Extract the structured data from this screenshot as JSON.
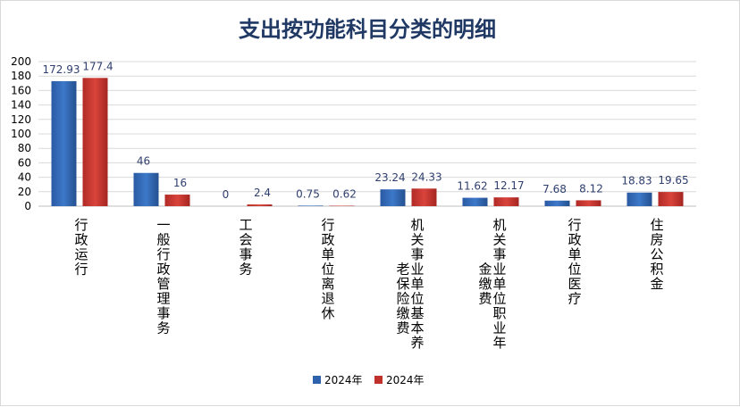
{
  "chart_data": {
    "type": "bar",
    "title": "支出按功能科目分类的明细",
    "xlabel": "",
    "ylabel": "",
    "ylim": [
      0,
      200
    ],
    "yticks": [
      0,
      20,
      40,
      60,
      80,
      100,
      120,
      140,
      160,
      180,
      200
    ],
    "grid": true,
    "legend_position": "bottom",
    "categories": [
      "行政运行",
      "一般行政管理事务",
      "工会事务",
      "行政单位离退休",
      "机关事业单位基本养老保险缴费",
      "机关事业单位职业年金缴费",
      "行政单位医疗",
      "住房公积金"
    ],
    "category_display": [
      [
        [
          "行",
          "政",
          "运",
          "行"
        ]
      ],
      [
        [
          "一",
          "般",
          "行",
          "政",
          "管",
          "理",
          "事",
          "务"
        ]
      ],
      [
        [
          "工",
          "会",
          "事",
          "务"
        ]
      ],
      [
        [
          "行",
          "政",
          "单",
          "位",
          "离",
          "退",
          "休"
        ]
      ],
      [
        [
          "老",
          "保",
          "险",
          "缴",
          "费"
        ],
        [
          "机",
          "关",
          "事",
          "业",
          "单",
          "位",
          "基",
          "本",
          "养"
        ]
      ],
      [
        [
          "金",
          "缴",
          "费"
        ],
        [
          "机",
          "关",
          "事",
          "业",
          "单",
          "位",
          "职",
          "业",
          "年"
        ]
      ],
      [
        [
          "行",
          "政",
          "单",
          "位",
          "医",
          "疗"
        ]
      ],
      [
        [
          "住",
          "房",
          "公",
          "积",
          "金"
        ]
      ]
    ],
    "series": [
      {
        "name": "2024年",
        "color": "#2e62ad",
        "values": [
          172.93,
          46,
          0,
          0.75,
          23.24,
          11.62,
          7.68,
          18.83
        ]
      },
      {
        "name": "2024年",
        "color": "#c0312c",
        "values": [
          177.4,
          16,
          2.4,
          0.62,
          24.33,
          12.17,
          8.12,
          19.65
        ]
      }
    ],
    "data_labels": [
      [
        "172.93",
        "46",
        "0",
        "0.75",
        "23.24",
        "11.62",
        "7.68",
        "18.83"
      ],
      [
        "177.4",
        "16",
        "2.4",
        "0.62",
        "24.33",
        "12.17",
        "8.12",
        "19.65"
      ]
    ]
  }
}
